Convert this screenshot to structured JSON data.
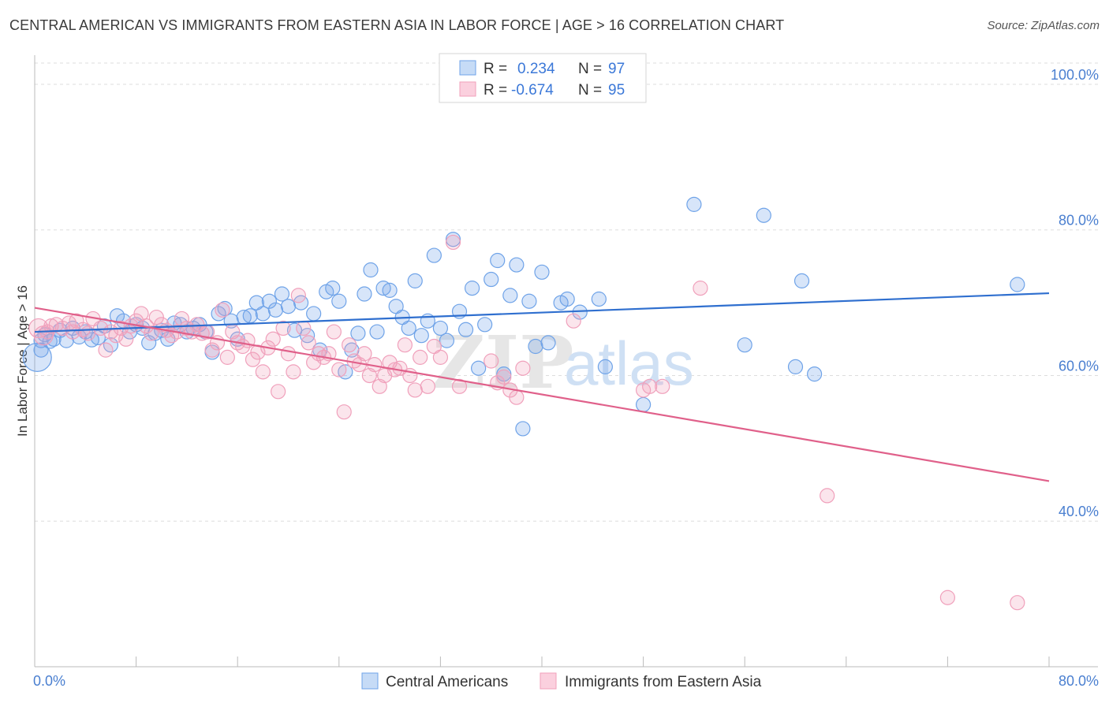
{
  "header": {
    "title": "CENTRAL AMERICAN VS IMMIGRANTS FROM EASTERN ASIA IN LABOR FORCE | AGE > 16 CORRELATION CHART",
    "source": "Source: ZipAtlas.com"
  },
  "watermark": {
    "zip": "ZIP",
    "atlas": "atlas"
  },
  "legend": {
    "rows": [
      {
        "r_label": "R =",
        "r_value": "0.234",
        "n_label": "N =",
        "n_value": "97"
      },
      {
        "r_label": "R =",
        "r_value": "-0.674",
        "n_label": "N =",
        "n_value": "95"
      }
    ]
  },
  "chart_data": {
    "type": "scatter",
    "title": "CENTRAL AMERICAN VS IMMIGRANTS FROM EASTERN ASIA IN LABOR FORCE | AGE > 16 CORRELATION CHART",
    "xlabel": "",
    "ylabel": "In Labor Force | Age > 16",
    "xlim": [
      0,
      80
    ],
    "ylim": [
      20,
      104
    ],
    "x_tick_labels": [
      {
        "value": 0,
        "label": "0.0%"
      },
      {
        "value": 80,
        "label": "80.0%"
      }
    ],
    "y_tick_labels": [
      {
        "value": 100,
        "label": "100.0%"
      },
      {
        "value": 80,
        "label": "80.0%"
      },
      {
        "value": 60,
        "label": "60.0%"
      },
      {
        "value": 40,
        "label": "40.0%"
      }
    ],
    "colors": {
      "blue": "#6fa3e8",
      "blue_line": "#2f6fcf",
      "pink": "#f0a0bb",
      "pink_line": "#e0608a"
    },
    "series": [
      {
        "name": "Central Americans",
        "color": "#6fa3e8",
        "trend": {
          "x0": 0,
          "y0": 66.0,
          "x1": 80,
          "y1": 71.3
        },
        "points": [
          [
            0.2,
            62.5
          ],
          [
            0.5,
            64.8
          ],
          [
            0.8,
            65.6
          ],
          [
            1.2,
            64.7
          ],
          [
            1.5,
            65.0
          ],
          [
            2.0,
            66.2
          ],
          [
            2.5,
            64.8
          ],
          [
            3.0,
            66.5
          ],
          [
            3.5,
            65.3
          ],
          [
            4.0,
            66.0
          ],
          [
            4.5,
            64.9
          ],
          [
            5.0,
            65.2
          ],
          [
            5.5,
            66.8
          ],
          [
            6.0,
            64.2
          ],
          [
            6.5,
            68.2
          ],
          [
            7.0,
            67.5
          ],
          [
            7.5,
            66.0
          ],
          [
            8.0,
            67.0
          ],
          [
            8.5,
            66.5
          ],
          [
            9.0,
            64.5
          ],
          [
            9.5,
            65.8
          ],
          [
            10.0,
            66.2
          ],
          [
            10.5,
            65.0
          ],
          [
            11.0,
            67.2
          ],
          [
            11.5,
            67.0
          ],
          [
            12.0,
            66.0
          ],
          [
            12.5,
            66.5
          ],
          [
            13.0,
            67.0
          ],
          [
            13.5,
            66.0
          ],
          [
            14.0,
            63.2
          ],
          [
            14.5,
            68.5
          ],
          [
            15.0,
            69.2
          ],
          [
            15.5,
            67.5
          ],
          [
            16.0,
            65.0
          ],
          [
            16.5,
            68.0
          ],
          [
            17.0,
            68.2
          ],
          [
            17.5,
            70.0
          ],
          [
            18.0,
            68.5
          ],
          [
            18.5,
            70.2
          ],
          [
            19.0,
            69.0
          ],
          [
            19.5,
            71.2
          ],
          [
            20.0,
            69.5
          ],
          [
            20.5,
            66.2
          ],
          [
            21.0,
            70.0
          ],
          [
            21.5,
            65.5
          ],
          [
            22.0,
            68.5
          ],
          [
            22.5,
            63.5
          ],
          [
            23.0,
            71.5
          ],
          [
            23.5,
            72.0
          ],
          [
            24.0,
            70.2
          ],
          [
            24.5,
            60.5
          ],
          [
            25.0,
            63.5
          ],
          [
            25.5,
            65.8
          ],
          [
            26.0,
            71.2
          ],
          [
            26.5,
            74.5
          ],
          [
            27.0,
            66.0
          ],
          [
            27.5,
            72.0
          ],
          [
            28.0,
            71.7
          ],
          [
            28.5,
            69.5
          ],
          [
            29.0,
            68.0
          ],
          [
            29.5,
            66.5
          ],
          [
            30.0,
            73.0
          ],
          [
            30.5,
            65.5
          ],
          [
            31.0,
            67.5
          ],
          [
            31.5,
            76.5
          ],
          [
            32.0,
            66.5
          ],
          [
            32.5,
            64.8
          ],
          [
            33.0,
            78.7
          ],
          [
            33.5,
            68.8
          ],
          [
            34.0,
            66.3
          ],
          [
            34.5,
            72.0
          ],
          [
            35.0,
            61.0
          ],
          [
            35.5,
            67.0
          ],
          [
            36.0,
            73.2
          ],
          [
            36.5,
            75.8
          ],
          [
            37.0,
            60.2
          ],
          [
            37.5,
            71.0
          ],
          [
            38.0,
            75.2
          ],
          [
            38.5,
            52.7
          ],
          [
            39.0,
            70.2
          ],
          [
            39.5,
            64.0
          ],
          [
            40.0,
            74.2
          ],
          [
            40.5,
            64.5
          ],
          [
            41.5,
            70.0
          ],
          [
            42.0,
            70.5
          ],
          [
            43.0,
            68.7
          ],
          [
            44.5,
            70.5
          ],
          [
            45.0,
            61.2
          ],
          [
            48.0,
            56.0
          ],
          [
            52.0,
            83.5
          ],
          [
            56.0,
            64.2
          ],
          [
            57.5,
            82.0
          ],
          [
            60.0,
            61.2
          ],
          [
            60.5,
            73.0
          ],
          [
            61.5,
            60.2
          ],
          [
            77.5,
            72.5
          ],
          [
            0.5,
            63.5
          ]
        ]
      },
      {
        "name": "Immigrants from Eastern Asia",
        "color": "#f0a0bb",
        "trend": {
          "x0": 0,
          "y0": 69.3,
          "x1": 80,
          "y1": 45.5
        },
        "points": [
          [
            0.3,
            66.5
          ],
          [
            0.7,
            65.5
          ],
          [
            1.0,
            66.0
          ],
          [
            1.3,
            66.8
          ],
          [
            1.7,
            67.0
          ],
          [
            2.2,
            66.5
          ],
          [
            2.7,
            67.2
          ],
          [
            3.0,
            66.0
          ],
          [
            3.3,
            67.5
          ],
          [
            3.8,
            66.3
          ],
          [
            4.2,
            65.8
          ],
          [
            4.6,
            67.8
          ],
          [
            5.2,
            66.5
          ],
          [
            5.6,
            63.5
          ],
          [
            6.0,
            66.0
          ],
          [
            6.4,
            65.5
          ],
          [
            6.8,
            66.5
          ],
          [
            7.2,
            65.0
          ],
          [
            7.6,
            66.8
          ],
          [
            8.0,
            67.5
          ],
          [
            8.4,
            68.5
          ],
          [
            8.8,
            66.8
          ],
          [
            9.2,
            65.8
          ],
          [
            9.6,
            68.0
          ],
          [
            10.0,
            67.0
          ],
          [
            10.4,
            66.2
          ],
          [
            10.8,
            65.5
          ],
          [
            11.2,
            66.0
          ],
          [
            11.6,
            67.8
          ],
          [
            12.0,
            66.5
          ],
          [
            12.4,
            66.0
          ],
          [
            12.8,
            67.0
          ],
          [
            13.2,
            65.8
          ],
          [
            13.6,
            66.0
          ],
          [
            14.0,
            63.5
          ],
          [
            14.4,
            64.5
          ],
          [
            14.8,
            69.0
          ],
          [
            15.2,
            62.5
          ],
          [
            15.6,
            66.0
          ],
          [
            16.0,
            64.5
          ],
          [
            16.4,
            64.0
          ],
          [
            16.8,
            64.8
          ],
          [
            17.2,
            62.2
          ],
          [
            17.6,
            63.2
          ],
          [
            18.0,
            60.5
          ],
          [
            18.4,
            63.8
          ],
          [
            18.8,
            65.0
          ],
          [
            19.2,
            57.8
          ],
          [
            19.6,
            66.5
          ],
          [
            20.0,
            63.0
          ],
          [
            20.4,
            60.5
          ],
          [
            20.8,
            71.0
          ],
          [
            21.2,
            66.5
          ],
          [
            21.6,
            64.5
          ],
          [
            22.0,
            61.8
          ],
          [
            22.4,
            63.0
          ],
          [
            22.8,
            62.5
          ],
          [
            23.2,
            63.0
          ],
          [
            23.6,
            66.0
          ],
          [
            24.0,
            60.8
          ],
          [
            24.4,
            55.0
          ],
          [
            24.8,
            64.2
          ],
          [
            25.2,
            62.0
          ],
          [
            25.6,
            61.5
          ],
          [
            26.0,
            63.0
          ],
          [
            26.4,
            60.0
          ],
          [
            26.8,
            61.5
          ],
          [
            27.2,
            58.5
          ],
          [
            27.6,
            60.0
          ],
          [
            28.0,
            61.8
          ],
          [
            28.4,
            60.8
          ],
          [
            28.8,
            61.0
          ],
          [
            29.2,
            64.2
          ],
          [
            29.6,
            60.0
          ],
          [
            30.0,
            58.0
          ],
          [
            30.4,
            62.5
          ],
          [
            31.0,
            58.5
          ],
          [
            31.5,
            64.0
          ],
          [
            32.0,
            62.5
          ],
          [
            33.0,
            78.3
          ],
          [
            33.5,
            58.5
          ],
          [
            36.0,
            62.0
          ],
          [
            36.5,
            59.0
          ],
          [
            37.0,
            59.8
          ],
          [
            37.5,
            58.0
          ],
          [
            38.0,
            57.0
          ],
          [
            38.5,
            61.0
          ],
          [
            42.5,
            67.5
          ],
          [
            48.0,
            58.0
          ],
          [
            48.5,
            58.5
          ],
          [
            49.5,
            58.5
          ],
          [
            52.5,
            72.0
          ],
          [
            62.5,
            43.5
          ],
          [
            72.0,
            29.5
          ],
          [
            77.5,
            28.8
          ]
        ]
      }
    ],
    "bottom_legend": [
      "Central Americans",
      "Immigrants from Eastern Asia"
    ]
  }
}
